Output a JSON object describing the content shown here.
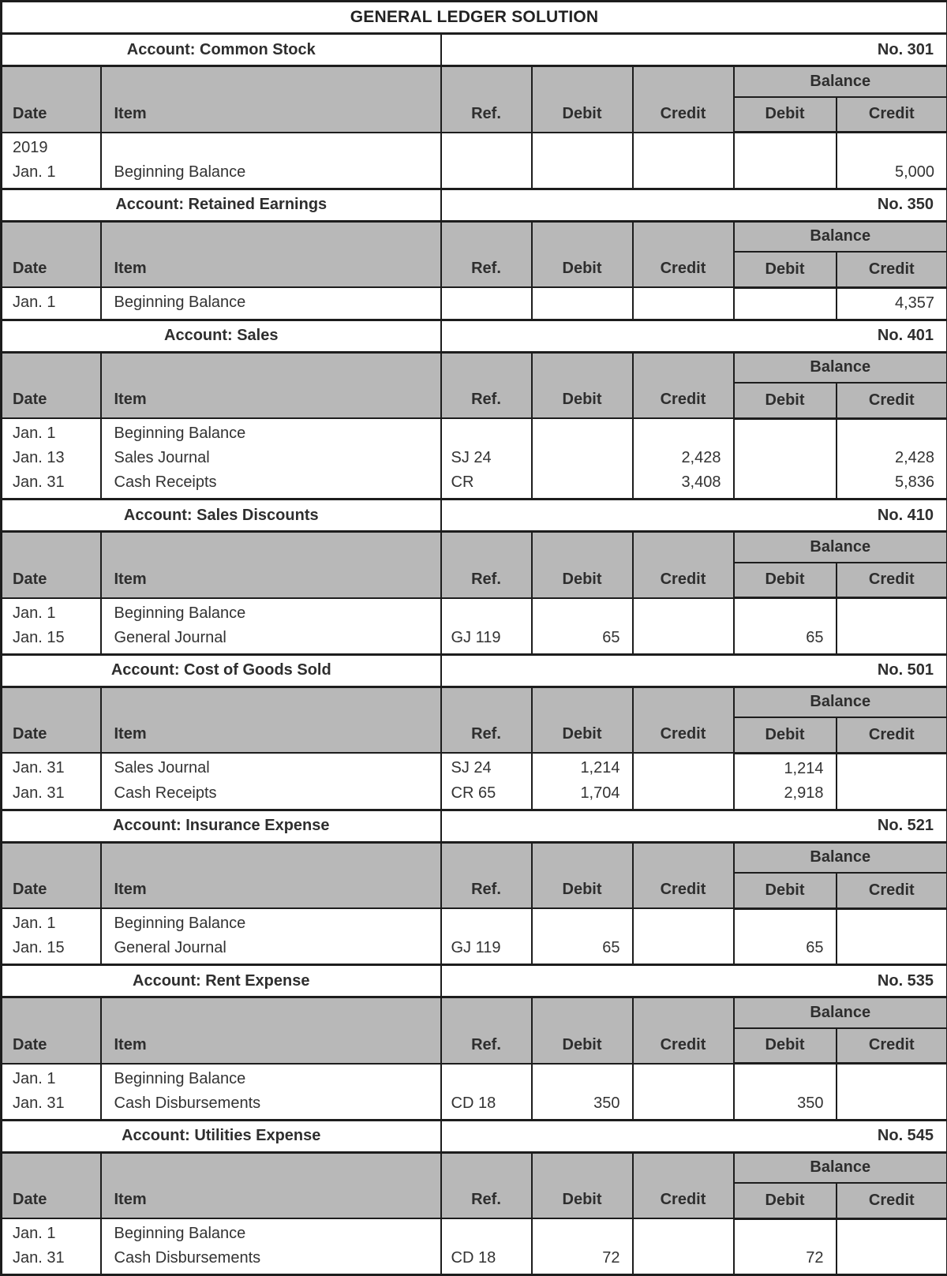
{
  "title": "GENERAL LEDGER SOLUTION",
  "columns": {
    "date": "Date",
    "item": "Item",
    "ref": "Ref.",
    "debit": "Debit",
    "credit": "Credit",
    "balance": "Balance",
    "balance_debit": "Debit",
    "balance_credit": "Credit"
  },
  "colors": {
    "header_fill": "#b8b8b8",
    "border": "#1d1d1d",
    "text": "#333333"
  },
  "accounts": [
    {
      "name": "Account: Common Stock",
      "number": "No. 301",
      "entries": [
        {
          "date": "2019",
          "item": "",
          "ref": "",
          "debit": "",
          "credit": "",
          "balance_debit": "",
          "balance_credit": ""
        },
        {
          "date": "Jan. 1",
          "item": "Beginning Balance",
          "ref": "",
          "debit": "",
          "credit": "",
          "balance_debit": "",
          "balance_credit": "5,000"
        }
      ]
    },
    {
      "name": "Account: Retained Earnings",
      "number": "No. 350",
      "entries": [
        {
          "date": "Jan. 1",
          "item": "Beginning Balance",
          "ref": "",
          "debit": "",
          "credit": "",
          "balance_debit": "",
          "balance_credit": "4,357"
        }
      ]
    },
    {
      "name": "Account: Sales",
      "number": "No. 401",
      "entries": [
        {
          "date": "Jan. 1",
          "item": "Beginning Balance",
          "ref": "",
          "debit": "",
          "credit": "",
          "balance_debit": "",
          "balance_credit": ""
        },
        {
          "date": "Jan. 13",
          "item": "Sales Journal",
          "ref": "SJ 24",
          "debit": "",
          "credit": "2,428",
          "balance_debit": "",
          "balance_credit": "2,428"
        },
        {
          "date": "Jan. 31",
          "item": "Cash Receipts",
          "ref": "CR",
          "debit": "",
          "credit": "3,408",
          "balance_debit": "",
          "balance_credit": "5,836"
        }
      ]
    },
    {
      "name": "Account: Sales Discounts",
      "number": "No. 410",
      "entries": [
        {
          "date": "Jan. 1",
          "item": "Beginning Balance",
          "ref": "",
          "debit": "",
          "credit": "",
          "balance_debit": "",
          "balance_credit": ""
        },
        {
          "date": "Jan. 15",
          "item": "General Journal",
          "ref": "GJ 119",
          "debit": "65",
          "credit": "",
          "balance_debit": "65",
          "balance_credit": ""
        }
      ]
    },
    {
      "name": "Account: Cost of Goods Sold",
      "number": "No. 501",
      "entries": [
        {
          "date": "Jan. 31",
          "item": "Sales Journal",
          "ref": "SJ 24",
          "debit": "1,214",
          "credit": "",
          "balance_debit": "1,214",
          "balance_credit": ""
        },
        {
          "date": "Jan. 31",
          "item": "Cash Receipts",
          "ref": "CR 65",
          "debit": "1,704",
          "credit": "",
          "balance_debit": "2,918",
          "balance_credit": ""
        }
      ]
    },
    {
      "name": "Account: Insurance Expense",
      "number": "No. 521",
      "entries": [
        {
          "date": "Jan. 1",
          "item": "Beginning Balance",
          "ref": "",
          "debit": "",
          "credit": "",
          "balance_debit": "",
          "balance_credit": ""
        },
        {
          "date": "Jan. 15",
          "item": "General Journal",
          "ref": "GJ 119",
          "debit": "65",
          "credit": "",
          "balance_debit": "65",
          "balance_credit": ""
        }
      ]
    },
    {
      "name": "Account: Rent Expense",
      "number": "No. 535",
      "entries": [
        {
          "date": "Jan. 1",
          "item": "Beginning Balance",
          "ref": "",
          "debit": "",
          "credit": "",
          "balance_debit": "",
          "balance_credit": ""
        },
        {
          "date": "Jan. 31",
          "item": "Cash Disbursements",
          "ref": "CD 18",
          "debit": "350",
          "credit": "",
          "balance_debit": "350",
          "balance_credit": ""
        }
      ]
    },
    {
      "name": "Account: Utilities Expense",
      "number": "No. 545",
      "entries": [
        {
          "date": "Jan. 1",
          "item": "Beginning Balance",
          "ref": "",
          "debit": "",
          "credit": "",
          "balance_debit": "",
          "balance_credit": ""
        },
        {
          "date": "Jan. 31",
          "item": "Cash Disbursements",
          "ref": "CD 18",
          "debit": "72",
          "credit": "",
          "balance_debit": "72",
          "balance_credit": ""
        }
      ]
    }
  ]
}
